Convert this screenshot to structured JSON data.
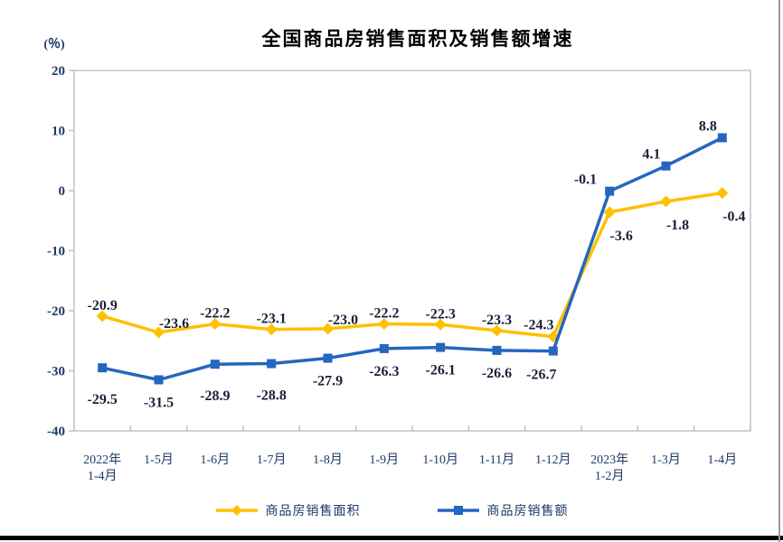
{
  "page": {
    "background": "#FFFFFF",
    "bottom_bar_color": "#000000",
    "right_edge_color": "#9A9A9A"
  },
  "chart_data": {
    "type": "line",
    "title": "全国商品房销售面积及销售额增速",
    "unit_label": "(％)",
    "ylim": [
      -40,
      20
    ],
    "ytick_step": 10,
    "grid": false,
    "legend_position": "bottom",
    "categories": [
      "2022年\n1-4月",
      "1-5月",
      "1-6月",
      "1-7月",
      "1-8月",
      "1-9月",
      "1-10月",
      "1-11月",
      "1-12月",
      "2023年\n1-2月",
      "1-3月",
      "1-4月"
    ],
    "series": [
      {
        "name": "商品房销售面积",
        "color": "#FFC000",
        "marker": "diamond",
        "values": [
          -20.9,
          -23.6,
          -22.2,
          -23.1,
          -23.0,
          -22.2,
          -22.3,
          -23.3,
          -24.3,
          -3.6,
          -1.8,
          -0.4
        ],
        "label_positions": [
          "above",
          "above-right",
          "above",
          "above",
          "above-right",
          "above",
          "above",
          "above",
          "above-left",
          "below-right",
          "below-right",
          "below-right"
        ]
      },
      {
        "name": "商品房销售额",
        "color": "#2566BE",
        "marker": "square",
        "values": [
          -29.5,
          -31.5,
          -28.9,
          -28.8,
          -27.9,
          -26.3,
          -26.1,
          -26.6,
          -26.7,
          -0.1,
          4.1,
          8.8
        ],
        "label_positions": [
          "below-far",
          "below",
          "below-far",
          "below-far",
          "below",
          "below",
          "below",
          "below",
          "below-left",
          "left",
          "above-left",
          "above-left"
        ]
      }
    ],
    "colors": {
      "axis_text": "#1E3A66",
      "data_label": "#1A2138",
      "plot_border": "#C3C3C3",
      "title": "#000000"
    }
  }
}
